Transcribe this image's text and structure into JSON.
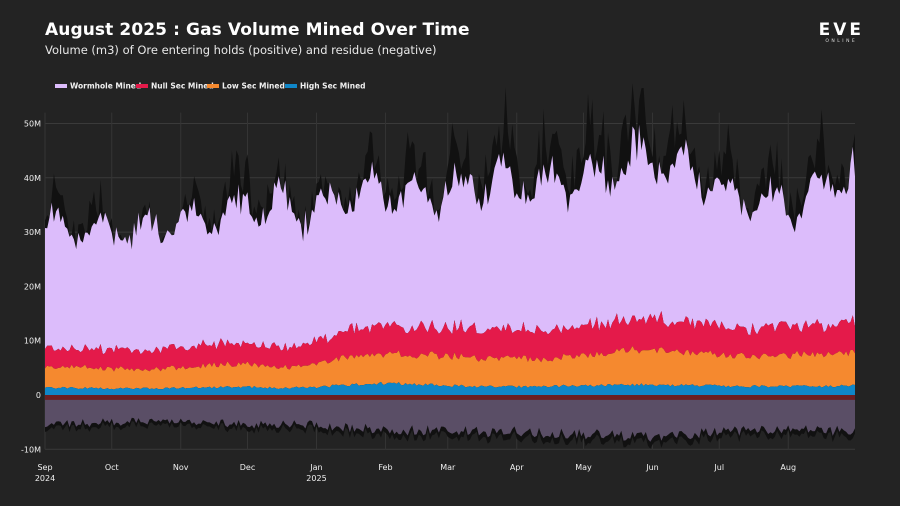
{
  "header": {
    "title": "August 2025 : Gas Volume Mined Over Time",
    "subtitle": "Volume (m3) of Ore entering holds (positive) and residue (negative)"
  },
  "logo": {
    "main": "EVE",
    "sub": "ONLINE"
  },
  "colors": {
    "background": "#232323",
    "wormhole": "#dcbcfb",
    "nullsec": "#e41a4a",
    "lowsec": "#f5892f",
    "highsec": "#0f86c8",
    "residue_band": "#5a4e66",
    "residue_edge": "#6b1e22",
    "total_spikes": "#111111"
  },
  "chart_data": {
    "type": "area",
    "title": "August 2025 : Gas Volume Mined Over Time",
    "subtitle": "Volume (m3) of Ore entering holds (positive) and residue (negative)",
    "stacked": true,
    "legend_position": "top-left",
    "grid": true,
    "x_range": [
      "2024-09-01",
      "2025-08-31"
    ],
    "ylim": [
      -10000000,
      52000000
    ],
    "y_ticks": [
      "-10M",
      "0",
      "10M",
      "20M",
      "30M",
      "40M",
      "50M"
    ],
    "y_tick_values": [
      -10000000,
      0,
      10000000,
      20000000,
      30000000,
      40000000,
      50000000
    ],
    "x_ticks": [
      {
        "label": "Sep",
        "sub": "2024",
        "date": "2024-09-01"
      },
      {
        "label": "Oct",
        "sub": "",
        "date": "2024-10-01"
      },
      {
        "label": "Nov",
        "sub": "",
        "date": "2024-11-01"
      },
      {
        "label": "Dec",
        "sub": "",
        "date": "2024-12-01"
      },
      {
        "label": "Jan",
        "sub": "2025",
        "date": "2025-01-01"
      },
      {
        "label": "Feb",
        "sub": "",
        "date": "2025-02-01"
      },
      {
        "label": "Mar",
        "sub": "",
        "date": "2025-03-01"
      },
      {
        "label": "Apr",
        "sub": "",
        "date": "2025-04-01"
      },
      {
        "label": "May",
        "sub": "",
        "date": "2025-05-01"
      },
      {
        "label": "Jun",
        "sub": "",
        "date": "2025-06-01"
      },
      {
        "label": "Jul",
        "sub": "",
        "date": "2025-07-01"
      },
      {
        "label": "Aug",
        "sub": "",
        "date": "2025-08-01"
      }
    ],
    "x": [
      "2024-09-01",
      "2024-09-15",
      "2024-10-01",
      "2024-10-15",
      "2024-11-01",
      "2024-11-15",
      "2024-12-01",
      "2024-12-15",
      "2025-01-01",
      "2025-01-15",
      "2025-02-01",
      "2025-02-15",
      "2025-03-01",
      "2025-03-15",
      "2025-04-01",
      "2025-04-15",
      "2025-05-01",
      "2025-05-15",
      "2025-06-01",
      "2025-06-15",
      "2025-07-01",
      "2025-07-15",
      "2025-08-01",
      "2025-08-15",
      "2025-08-31"
    ],
    "series": [
      {
        "name": "Wormhole Mined",
        "values": [
          22000000,
          23000000,
          22500000,
          23000000,
          24000000,
          23500000,
          26000000,
          27000000,
          25000000,
          25500000,
          25500000,
          25000000,
          26000000,
          27500000,
          28000000,
          27500000,
          28000000,
          29000000,
          31000000,
          28500000,
          25500000,
          24000000,
          22500000,
          26000000,
          28000000
        ]
      },
      {
        "name": "Null Sec Mined",
        "values": [
          3300000,
          3400000,
          3600000,
          3200000,
          3800000,
          3900000,
          3800000,
          3700000,
          4300000,
          5000000,
          5200000,
          5100000,
          5300000,
          5400000,
          5300000,
          5200000,
          5400000,
          5600000,
          5800000,
          5500000,
          5300000,
          5100000,
          5200000,
          5300000,
          5500000
        ]
      },
      {
        "name": "Low Sec Mined",
        "values": [
          3800000,
          3800000,
          3700000,
          3400000,
          3800000,
          4100000,
          4200000,
          3800000,
          4200000,
          5200000,
          5400000,
          5300000,
          5500000,
          5100000,
          5200000,
          5000000,
          5600000,
          6200000,
          6500000,
          6000000,
          5700000,
          5600000,
          5800000,
          5900000,
          6200000
        ]
      },
      {
        "name": "High Sec Mined",
        "values": [
          1400000,
          1300000,
          1200000,
          1200000,
          1300000,
          1400000,
          1500000,
          1300000,
          1400000,
          1900000,
          2200000,
          2000000,
          1700000,
          1600000,
          1500000,
          1600000,
          1700000,
          1800000,
          1900000,
          1800000,
          1700000,
          1600000,
          1600000,
          1600000,
          1700000
        ]
      }
    ],
    "total_peak": [
      34000000,
      36500000,
      32000000,
      30500000,
      33500000,
      36000000,
      42000000,
      38000000,
      37000000,
      40000000,
      43000000,
      42000000,
      43500000,
      45500000,
      46000000,
      45000000,
      47000000,
      50000000,
      54000000,
      46000000,
      43000000,
      41000000,
      39000000,
      43000000,
      47000000
    ],
    "residue": [
      -5500000,
      -5200000,
      -5000000,
      -4800000,
      -4700000,
      -5200000,
      -5500000,
      -5500000,
      -5400000,
      -6000000,
      -6500000,
      -6500000,
      -6600000,
      -6800000,
      -6800000,
      -7000000,
      -7200000,
      -7300000,
      -7800000,
      -7200000,
      -6800000,
      -6500000,
      -6500000,
      -6600000,
      -6500000
    ]
  }
}
